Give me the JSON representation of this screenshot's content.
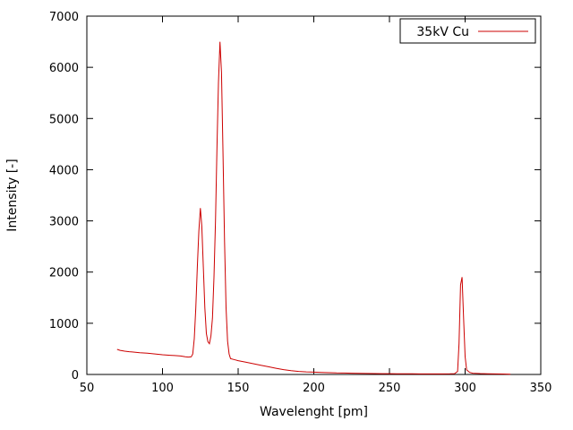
{
  "colors": {
    "background": "#ffffff",
    "axis": "#000000",
    "text": "#000000",
    "series_red": "#cc0000"
  },
  "chart_data": {
    "type": "line",
    "title": "",
    "xlabel": "Wavelenght [pm]",
    "ylabel": "Intensity [-]",
    "xlim": [
      50,
      350
    ],
    "ylim": [
      0,
      7000
    ],
    "xticks": [
      50,
      100,
      150,
      200,
      250,
      300,
      350
    ],
    "yticks": [
      0,
      1000,
      2000,
      3000,
      4000,
      5000,
      6000,
      7000
    ],
    "grid": false,
    "legend_position": "top-right",
    "legend_box": true,
    "series": [
      {
        "name": "35kV Cu",
        "color": "#cc0000",
        "points": [
          [
            70,
            490
          ],
          [
            72,
            470
          ],
          [
            75,
            455
          ],
          [
            78,
            445
          ],
          [
            80,
            440
          ],
          [
            85,
            425
          ],
          [
            90,
            415
          ],
          [
            95,
            400
          ],
          [
            100,
            385
          ],
          [
            105,
            375
          ],
          [
            108,
            370
          ],
          [
            110,
            365
          ],
          [
            112,
            360
          ],
          [
            115,
            345
          ],
          [
            117,
            340
          ],
          [
            119,
            345
          ],
          [
            120,
            400
          ],
          [
            121,
            700
          ],
          [
            122,
            1300
          ],
          [
            123,
            2100
          ],
          [
            124,
            2800
          ],
          [
            125,
            3250
          ],
          [
            126,
            2900
          ],
          [
            127,
            2100
          ],
          [
            128,
            1300
          ],
          [
            129,
            800
          ],
          [
            130,
            640
          ],
          [
            131,
            600
          ],
          [
            132,
            750
          ],
          [
            133,
            1100
          ],
          [
            134,
            1900
          ],
          [
            135,
            3000
          ],
          [
            136,
            4400
          ],
          [
            137,
            5700
          ],
          [
            138,
            6500
          ],
          [
            139,
            5900
          ],
          [
            140,
            4300
          ],
          [
            141,
            2600
          ],
          [
            142,
            1300
          ],
          [
            143,
            650
          ],
          [
            144,
            400
          ],
          [
            145,
            310
          ],
          [
            148,
            285
          ],
          [
            150,
            270
          ],
          [
            155,
            240
          ],
          [
            160,
            210
          ],
          [
            165,
            180
          ],
          [
            170,
            150
          ],
          [
            175,
            120
          ],
          [
            180,
            95
          ],
          [
            185,
            75
          ],
          [
            190,
            60
          ],
          [
            195,
            50
          ],
          [
            200,
            45
          ],
          [
            205,
            40
          ],
          [
            210,
            35
          ],
          [
            215,
            30
          ],
          [
            220,
            28
          ],
          [
            225,
            25
          ],
          [
            230,
            22
          ],
          [
            235,
            20
          ],
          [
            240,
            18
          ],
          [
            245,
            16
          ],
          [
            250,
            15
          ],
          [
            255,
            14
          ],
          [
            260,
            13
          ],
          [
            265,
            12
          ],
          [
            270,
            11
          ],
          [
            275,
            10
          ],
          [
            280,
            10
          ],
          [
            285,
            10
          ],
          [
            290,
            12
          ],
          [
            293,
            15
          ],
          [
            295,
            60
          ],
          [
            296,
            600
          ],
          [
            297,
            1750
          ],
          [
            298,
            1900
          ],
          [
            299,
            1100
          ],
          [
            300,
            350
          ],
          [
            301,
            90
          ],
          [
            303,
            40
          ],
          [
            305,
            25
          ],
          [
            310,
            18
          ],
          [
            315,
            14
          ],
          [
            320,
            10
          ],
          [
            325,
            8
          ],
          [
            330,
            5
          ]
        ]
      }
    ]
  }
}
